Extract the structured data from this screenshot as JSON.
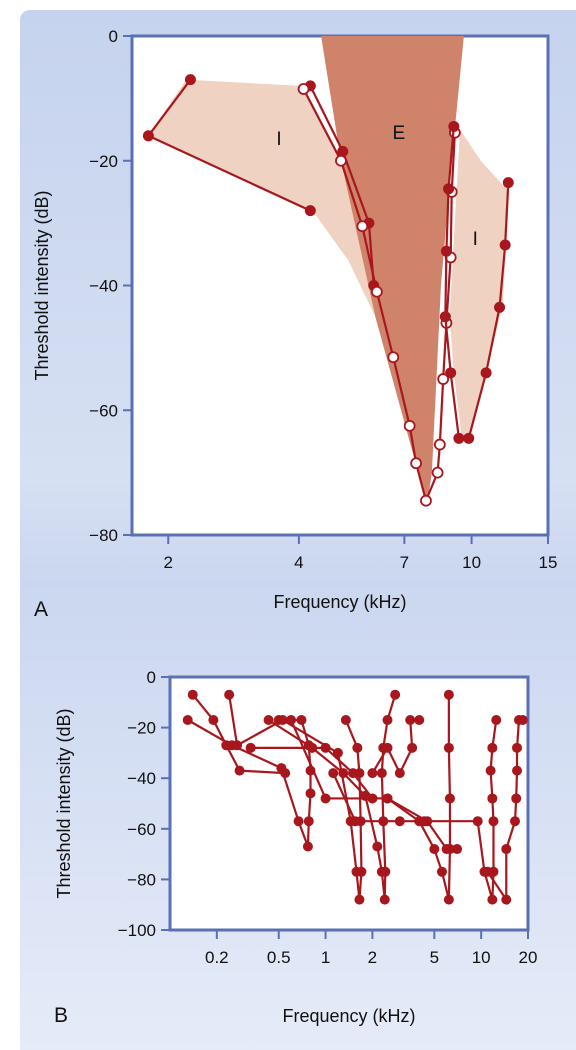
{
  "chart_data": [
    {
      "panel": "A",
      "type": "line",
      "xlabel": "Frequency (kHz)",
      "ylabel": "Threshold intensity (dB)",
      "xscale": "log",
      "xlim": [
        1.65,
        15
      ],
      "ylim": [
        -80,
        0
      ],
      "xticks": [
        2,
        4,
        7,
        10,
        15
      ],
      "yticks": [
        0,
        -20,
        -40,
        -60,
        -80
      ],
      "region_labels": [
        "I",
        "E",
        "I"
      ],
      "regions": {
        "excitatory": [
          [
            4.5,
            0
          ],
          [
            9.6,
            0
          ],
          [
            9.0,
            -20
          ],
          [
            8.5,
            -40
          ],
          [
            8.1,
            -70
          ],
          [
            7.9,
            -75
          ],
          [
            7.2,
            -65
          ],
          [
            6.0,
            -45
          ],
          [
            5.0,
            -20
          ]
        ],
        "inhibitory_left": [
          [
            2.2,
            -7
          ],
          [
            4.05,
            -8
          ],
          [
            5.0,
            -20
          ],
          [
            6.0,
            -45
          ],
          [
            5.2,
            -36
          ],
          [
            4.3,
            -28
          ],
          [
            1.8,
            -16
          ]
        ],
        "inhibitory_right": [
          [
            9.4,
            -15
          ],
          [
            10.5,
            -20
          ],
          [
            12.2,
            -25
          ],
          [
            12.0,
            -34
          ],
          [
            11.8,
            -43
          ],
          [
            10.8,
            -54
          ],
          [
            9.8,
            -64.5
          ],
          [
            9.5,
            -64.5
          ],
          [
            9.1,
            -54
          ],
          [
            8.9,
            -45
          ]
        ]
      },
      "series": [
        {
          "style": "filled",
          "points": [
            [
              2.25,
              -7
            ],
            [
              1.8,
              -16
            ],
            [
              4.25,
              -28
            ]
          ]
        },
        {
          "style": "filled",
          "points": [
            [
              4.25,
              -8
            ],
            [
              5.05,
              -18.5
            ],
            [
              5.8,
              -30
            ],
            [
              5.95,
              -40
            ]
          ]
        },
        {
          "style": "open",
          "points": [
            [
              4.1,
              -8.5
            ],
            [
              5.0,
              -20
            ],
            [
              5.6,
              -30.5
            ],
            [
              6.05,
              -41
            ],
            [
              6.6,
              -51.5
            ],
            [
              7.2,
              -62.5
            ],
            [
              7.45,
              -68.5
            ],
            [
              7.85,
              -74.5
            ],
            [
              8.35,
              -70
            ],
            [
              8.45,
              -65.5
            ],
            [
              8.6,
              -55
            ],
            [
              8.75,
              -46
            ],
            [
              8.95,
              -35.5
            ],
            [
              9.0,
              -25
            ],
            [
              9.15,
              -15.5
            ]
          ]
        },
        {
          "style": "filled",
          "points": [
            [
              9.1,
              -14.5
            ],
            [
              8.85,
              -24.5
            ],
            [
              8.75,
              -34.5
            ],
            [
              8.7,
              -45
            ],
            [
              8.95,
              -54
            ],
            [
              9.35,
              -64.5
            ]
          ]
        },
        {
          "style": "filled",
          "points": [
            [
              9.85,
              -64.5
            ],
            [
              10.8,
              -54
            ],
            [
              11.6,
              -43.5
            ],
            [
              11.95,
              -33.5
            ],
            [
              12.15,
              -23.5
            ]
          ]
        }
      ]
    },
    {
      "panel": "B",
      "type": "line",
      "xlabel": "Frequency (kHz)",
      "ylabel": "Threshold intensity (dB)",
      "xscale": "log",
      "xlim": [
        0.1,
        20
      ],
      "ylim": [
        -100,
        0
      ],
      "xticks": [
        0.2,
        0.5,
        1,
        2,
        5,
        10,
        20
      ],
      "yticks": [
        0,
        -20,
        -40,
        -60,
        -80,
        -100
      ],
      "series": [
        {
          "points": [
            [
              0.14,
              -7
            ],
            [
              0.19,
              -17
            ],
            [
              0.23,
              -27
            ],
            [
              0.28,
              -37
            ],
            [
              0.55,
              -38
            ]
          ]
        },
        {
          "points": [
            [
              0.13,
              -17
            ],
            [
              0.25,
              -27
            ],
            [
              0.52,
              -36
            ],
            [
              0.67,
              -57
            ],
            [
              0.77,
              -67
            ],
            [
              0.78,
              -57
            ],
            [
              0.8,
              -46
            ],
            [
              0.8,
              -37
            ],
            [
              0.78,
              -27
            ],
            [
              0.7,
              -17
            ],
            [
              0.5,
              -17
            ]
          ]
        },
        {
          "points": [
            [
              0.24,
              -7
            ],
            [
              0.27,
              -27
            ],
            [
              0.53,
              -17
            ],
            [
              1.2,
              -30
            ],
            [
              1.45,
              -57
            ],
            [
              1.58,
              -77
            ],
            [
              1.65,
              -88
            ],
            [
              1.7,
              -77
            ],
            [
              1.68,
              -57
            ],
            [
              1.65,
              -38
            ],
            [
              1.6,
              -28
            ],
            [
              1.35,
              -17
            ]
          ]
        },
        {
          "points": [
            [
              0.43,
              -17
            ],
            [
              0.82,
              -28
            ],
            [
              1.3,
              -38
            ],
            [
              1.8,
              -47
            ],
            [
              2.15,
              -67
            ],
            [
              2.3,
              -77
            ],
            [
              2.4,
              -88
            ],
            [
              2.42,
              -77
            ],
            [
              2.35,
              -57
            ],
            [
              2.3,
              -38
            ],
            [
              2.35,
              -28
            ],
            [
              2.5,
              -17
            ],
            [
              2.8,
              -7
            ]
          ]
        },
        {
          "points": [
            [
              0.6,
              -17
            ],
            [
              1.0,
              -48
            ],
            [
              2.5,
              -48
            ],
            [
              4.0,
              -57
            ],
            [
              5.0,
              -68
            ],
            [
              5.6,
              -77
            ],
            [
              6.2,
              -88
            ],
            [
              6.3,
              -68
            ],
            [
              6.3,
              -48
            ],
            [
              6.2,
              -28
            ],
            [
              6.2,
              -7
            ]
          ]
        },
        {
          "points": [
            [
              0.33,
              -28
            ],
            [
              1.0,
              -28
            ],
            [
              1.5,
              -38
            ],
            [
              2.0,
              -48
            ],
            [
              2.5,
              -48
            ],
            [
              4.5,
              -57
            ],
            [
              6.0,
              -68
            ],
            [
              7.0,
              -68
            ]
          ]
        },
        {
          "points": [
            [
              1.12,
              -38
            ],
            [
              1.55,
              -57
            ],
            [
              3.0,
              -57
            ],
            [
              4.3,
              -57
            ],
            [
              9.5,
              -57
            ],
            [
              10.5,
              -77
            ],
            [
              11.8,
              -88
            ],
            [
              12.0,
              -77
            ],
            [
              12.0,
              -57
            ],
            [
              11.8,
              -48
            ],
            [
              11.5,
              -37
            ],
            [
              11.8,
              -28
            ],
            [
              12.5,
              -17
            ]
          ]
        },
        {
          "points": [
            [
              2.0,
              -38
            ],
            [
              2.5,
              -28
            ],
            [
              3.0,
              -38
            ],
            [
              3.6,
              -28
            ],
            [
              3.5,
              -17
            ],
            [
              4.0,
              -17
            ]
          ]
        },
        {
          "points": [
            [
              11.0,
              -77
            ],
            [
              14.5,
              -88
            ],
            [
              14.5,
              -68
            ],
            [
              16.5,
              -57
            ],
            [
              16.8,
              -48
            ],
            [
              17.0,
              -37
            ],
            [
              17.0,
              -28
            ],
            [
              17.5,
              -17
            ],
            [
              18.5,
              -17
            ]
          ]
        }
      ]
    }
  ],
  "panel_labels": [
    "A",
    "B"
  ]
}
